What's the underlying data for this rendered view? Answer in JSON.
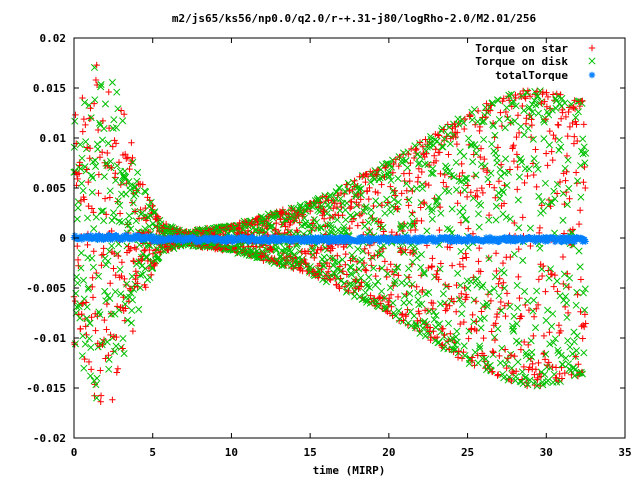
{
  "chart_data": {
    "type": "scatter",
    "title": "m2/js65/ks56/np0.0/q2.0/r-+.31-j80/logRho-2.0/M2.01/256",
    "xlabel": "time (MIRP)",
    "ylabel": "",
    "xlim": [
      0,
      35
    ],
    "ylim": [
      -0.02,
      0.02
    ],
    "x_ticks": [
      0,
      5,
      10,
      15,
      20,
      25,
      30,
      35
    ],
    "x_tick_labels": [
      "0",
      "5",
      "10",
      "15",
      "20",
      "25",
      "30",
      "35"
    ],
    "y_ticks": [
      -0.02,
      -0.015,
      -0.01,
      -0.005,
      0,
      0.005,
      0.01,
      0.015,
      0.02
    ],
    "y_tick_labels": [
      "-0.02",
      "-0.015",
      "-0.01",
      "-0.005",
      "0",
      "0.005",
      "0.01",
      "0.015",
      "0.02"
    ],
    "grid": false,
    "legend_position": "top-right",
    "time_range": [
      0,
      32.5
    ],
    "envelope": [
      {
        "t": 0.0,
        "amp": 0.013
      },
      {
        "t": 1.0,
        "amp": 0.016
      },
      {
        "t": 1.7,
        "amp": 0.0185
      },
      {
        "t": 2.5,
        "amp": 0.017
      },
      {
        "t": 3.5,
        "amp": 0.011
      },
      {
        "t": 4.5,
        "amp": 0.005
      },
      {
        "t": 5.5,
        "amp": 0.0015
      },
      {
        "t": 7.0,
        "amp": 0.0006
      },
      {
        "t": 10.0,
        "amp": 0.0012
      },
      {
        "t": 15.0,
        "amp": 0.0035
      },
      {
        "t": 20.0,
        "amp": 0.0075
      },
      {
        "t": 25.0,
        "amp": 0.0125
      },
      {
        "t": 28.0,
        "amp": 0.0145
      },
      {
        "t": 29.5,
        "amp": 0.0148
      },
      {
        "t": 31.0,
        "amp": 0.0143
      },
      {
        "t": 32.5,
        "amp": 0.0135
      }
    ],
    "series": [
      {
        "name": "Torque on star",
        "marker": "+",
        "color": "#ff0000"
      },
      {
        "name": "Torque on disk",
        "marker": "x",
        "color": "#00c000"
      },
      {
        "name": "totalTorque",
        "marker": "*",
        "color": "#0080ff",
        "approx_value": 0.0
      }
    ]
  }
}
